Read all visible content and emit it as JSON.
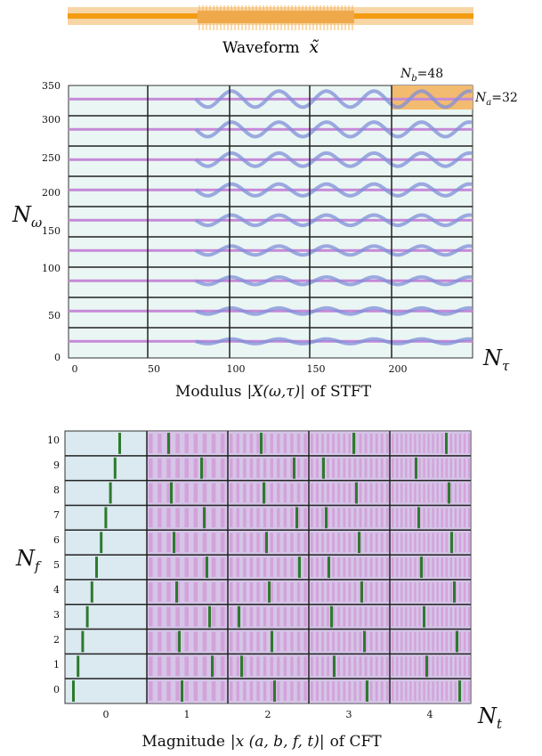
{
  "waveform": {
    "caption_text": "Waveform",
    "caption_symbol": "x̃",
    "band_color": "#f5c98c",
    "line_color": "#f39c12"
  },
  "stft": {
    "title_prefix": "Modulus",
    "title_math": "|X(ω,τ)|",
    "title_suffix": "of STFT",
    "ylabel_base": "N",
    "ylabel_sub": "ω",
    "xlabel_base": "N",
    "xlabel_sub": "τ",
    "y_ticks": [
      "350",
      "300",
      "250",
      "200",
      "150",
      "100",
      "50",
      "0"
    ],
    "x_ticks": [
      "0",
      "50",
      "100",
      "150",
      "200"
    ],
    "nb_label": "N",
    "nb_sub": "b",
    "nb_value": "=48",
    "na_label": "N",
    "na_sub": "a",
    "na_value": "=32",
    "rows": 9,
    "highlight_color": "#f0b66a",
    "wave_color": "#7f8fd8",
    "band_color": "#c68ad8",
    "bg_color": "#e9f5f3"
  },
  "cft": {
    "title_prefix": "Magnitude",
    "title_math": "|x (a, b, f, t)|",
    "title_suffix": "of CFT",
    "ylabel_base": "N",
    "ylabel_sub": "f",
    "xlabel_base": "N",
    "xlabel_sub": "t",
    "y_ticks": [
      "10",
      "9",
      "8",
      "7",
      "6",
      "5",
      "4",
      "3",
      "2",
      "1",
      "0"
    ],
    "x_ticks": [
      "0",
      "1",
      "2",
      "3",
      "4"
    ],
    "bg_color": "#dbe9f0",
    "pattern_color": "#d28ad2",
    "ridge_color": "#2d7a2d"
  }
}
